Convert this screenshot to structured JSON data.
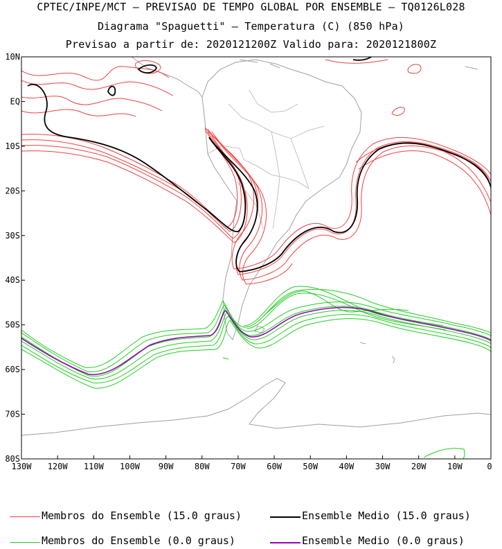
{
  "header": {
    "line1": "CPTEC/INPE/MCT – PREVISAO DE TEMPO GLOBAL POR ENSEMBLE – TQ0126L028",
    "line2": "Diagrama \"Spaguetti\" – Temperatura (C) (850 hPa)",
    "line3": "Previsao a partir de: 2020121200Z  Valido para: 2020121800Z"
  },
  "map": {
    "lat_labels": [
      "10N",
      "EQ",
      "10S",
      "20S",
      "30S",
      "40S",
      "50S",
      "60S",
      "70S",
      "80S"
    ],
    "lon_labels": [
      "130W",
      "120W",
      "110W",
      "100W",
      "90W",
      "80W",
      "70W",
      "60W",
      "50W",
      "40W",
      "30W",
      "20W",
      "10W",
      "0"
    ],
    "extent": {
      "lon": [
        -130,
        0
      ],
      "lat": [
        -80,
        10
      ]
    }
  },
  "legend": {
    "members_15": "Membros do Ensemble (15.0 graus)",
    "mean_15": "Ensemble Medio (15.0 graus)",
    "members_0": "Membros do Ensemble (0.0 graus)",
    "mean_0": "Ensemble Medio (0.0 graus)"
  },
  "colors": {
    "members_15": "#f04040",
    "mean_15": "#000000",
    "members_0": "#22cc22",
    "mean_0": "#9900bb",
    "coast": "#a0a0a0"
  }
}
